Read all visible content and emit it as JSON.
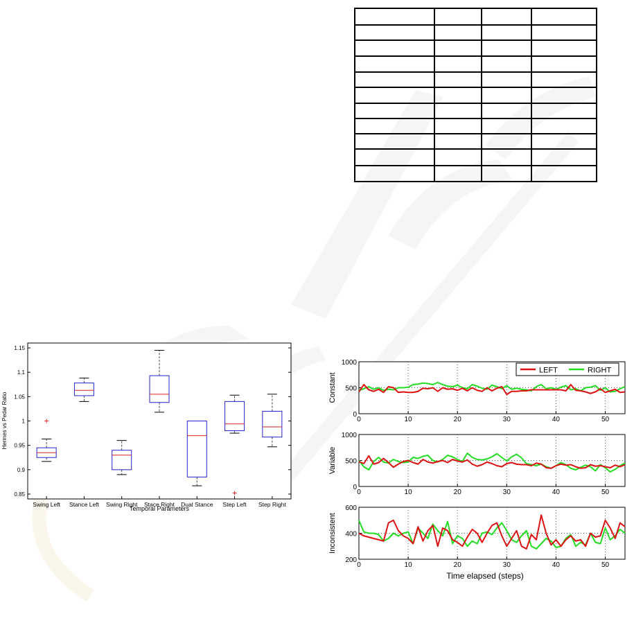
{
  "chart_data": [
    {
      "type": "box",
      "xlabel": "Temporal Parameters",
      "ylabel": "Hermes vs Pedar Ratio",
      "ylim": [
        0.84,
        1.16
      ],
      "yticks": [
        "0.85",
        "0.9",
        "0.95",
        "1",
        "1.05",
        "1.1",
        "1.15"
      ],
      "categories": [
        "Swing Left",
        "Stance Left",
        "Swing Right",
        "Stace Right",
        "Dual Stance",
        "Step Left",
        "Step Right"
      ],
      "boxes": [
        {
          "min": 0.917,
          "q1": 0.925,
          "median": 0.935,
          "q3": 0.945,
          "max": 0.963,
          "outliers": [
            1.0
          ]
        },
        {
          "min": 1.04,
          "q1": 1.052,
          "median": 1.063,
          "q3": 1.078,
          "max": 1.088,
          "outliers": []
        },
        {
          "min": 0.89,
          "q1": 0.9,
          "median": 0.93,
          "q3": 0.94,
          "max": 0.96,
          "outliers": []
        },
        {
          "min": 1.018,
          "q1": 1.038,
          "median": 1.055,
          "q3": 1.093,
          "max": 1.145,
          "outliers": []
        },
        {
          "min": 0.867,
          "q1": 0.885,
          "median": 0.97,
          "q3": 1.0,
          "max": 1.0,
          "outliers": []
        },
        {
          "min": 0.975,
          "q1": 0.98,
          "median": 0.994,
          "q3": 1.04,
          "max": 1.053,
          "outliers": [
            0.852
          ]
        },
        {
          "min": 0.947,
          "q1": 0.967,
          "median": 0.988,
          "q3": 1.02,
          "max": 1.055,
          "outliers": []
        }
      ],
      "colors": {
        "box": "#2222cc",
        "median": "#dd2222",
        "outlier": "#ee2222"
      }
    },
    {
      "type": "line",
      "xlabel": "Time elapsed (steps)",
      "xlim": [
        0,
        54
      ],
      "xticks": [
        "0",
        "10",
        "20",
        "30",
        "40",
        "50"
      ],
      "legend": {
        "placement": "top-right",
        "entries": [
          "LEFT",
          "RIGHT"
        ]
      },
      "colors": {
        "LEFT": "#dd1111",
        "RIGHT": "#22dd22"
      },
      "panels": [
        {
          "ylabel": "Constant",
          "ylim": [
            0,
            1000
          ],
          "yticks": [
            "0",
            "500",
            "1000"
          ],
          "series": [
            {
              "name": "LEFT",
              "values": [
                420,
                560,
                460,
                430,
                470,
                410,
                520,
                500,
                410,
                420,
                410,
                410,
                430,
                490,
                480,
                500,
                430,
                500,
                470,
                480,
                450,
                490,
                440,
                500,
                450,
                430,
                500,
                440,
                490,
                520,
                370,
                430,
                430,
                440,
                440,
                460,
                460,
                460,
                460,
                460,
                460,
                460,
                440,
                560,
                450,
                440,
                420,
                390,
                420,
                480,
                410,
                440,
                470,
                410,
                420
              ]
            },
            {
              "name": "RIGHT",
              "values": [
                450,
                480,
                520,
                470,
                500,
                450,
                470,
                460,
                500,
                500,
                510,
                560,
                570,
                590,
                580,
                560,
                600,
                560,
                530,
                520,
                550,
                500,
                480,
                560,
                530,
                490,
                470,
                550,
                520,
                480,
                540,
                470,
                490,
                470,
                460,
                440,
                520,
                560,
                480,
                500,
                470,
                510,
                540,
                460,
                480,
                440,
                500,
                510,
                540,
                450,
                500,
                420,
                430,
                480,
                520
              ]
            }
          ]
        },
        {
          "ylabel": "Variable",
          "ylim": [
            0,
            1000
          ],
          "yticks": [
            "0",
            "500",
            "1000"
          ],
          "series": [
            {
              "name": "LEFT",
              "values": [
                480,
                440,
                590,
                430,
                460,
                540,
                460,
                370,
                430,
                480,
                500,
                460,
                430,
                520,
                470,
                450,
                480,
                500,
                460,
                520,
                490,
                470,
                510,
                430,
                390,
                420,
                470,
                440,
                400,
                380,
                440,
                460,
                430,
                420,
                420,
                400,
                450,
                430,
                360,
                350,
                400,
                430,
                410,
                420,
                380,
                350,
                360,
                420,
                390,
                400,
                380,
                360,
                410,
                380,
                420
              ]
            },
            {
              "name": "RIGHT",
              "values": [
                500,
                380,
                320,
                480,
                560,
                470,
                450,
                520,
                480,
                460,
                470,
                560,
                540,
                580,
                600,
                500,
                470,
                520,
                600,
                570,
                520,
                480,
                640,
                560,
                520,
                510,
                530,
                570,
                630,
                560,
                490,
                570,
                620,
                550,
                440,
                420,
                400,
                430,
                380,
                350,
                400,
                460,
                420,
                350,
                320,
                370,
                410,
                380,
                300,
                420,
                360,
                280,
                330,
                400,
                450
              ]
            }
          ]
        },
        {
          "ylabel": "Inconsistent",
          "ylim": [
            200,
            600
          ],
          "yticks": [
            "200",
            "400",
            "600"
          ],
          "series": [
            {
              "name": "LEFT",
              "values": [
                400,
                380,
                370,
                360,
                350,
                340,
                480,
                500,
                420,
                380,
                360,
                320,
                450,
                340,
                420,
                460,
                300,
                440,
                420,
                350,
                330,
                300,
                370,
                430,
                400,
                330,
                400,
                460,
                480,
                380,
                300,
                360,
                420,
                300,
                280,
                390,
                350,
                540,
                400,
                310,
                350,
                300,
                350,
                380,
                340,
                350,
                300,
                400,
                370,
                380,
                500,
                440,
                360,
                480,
                450
              ]
            },
            {
              "name": "RIGHT",
              "values": [
                500,
                410,
                400,
                400,
                390,
                340,
                360,
                400,
                380,
                400,
                410,
                320,
                440,
                400,
                360,
                470,
                420,
                380,
                490,
                320,
                380,
                360,
                300,
                340,
                320,
                400,
                410,
                390,
                440,
                480,
                420,
                350,
                330,
                380,
                420,
                300,
                280,
                320,
                360,
                340,
                290,
                300,
                360,
                390,
                300,
                330,
                310,
                400,
                330,
                320,
                440,
                350,
                380,
                430,
                400
              ]
            }
          ]
        }
      ]
    }
  ]
}
